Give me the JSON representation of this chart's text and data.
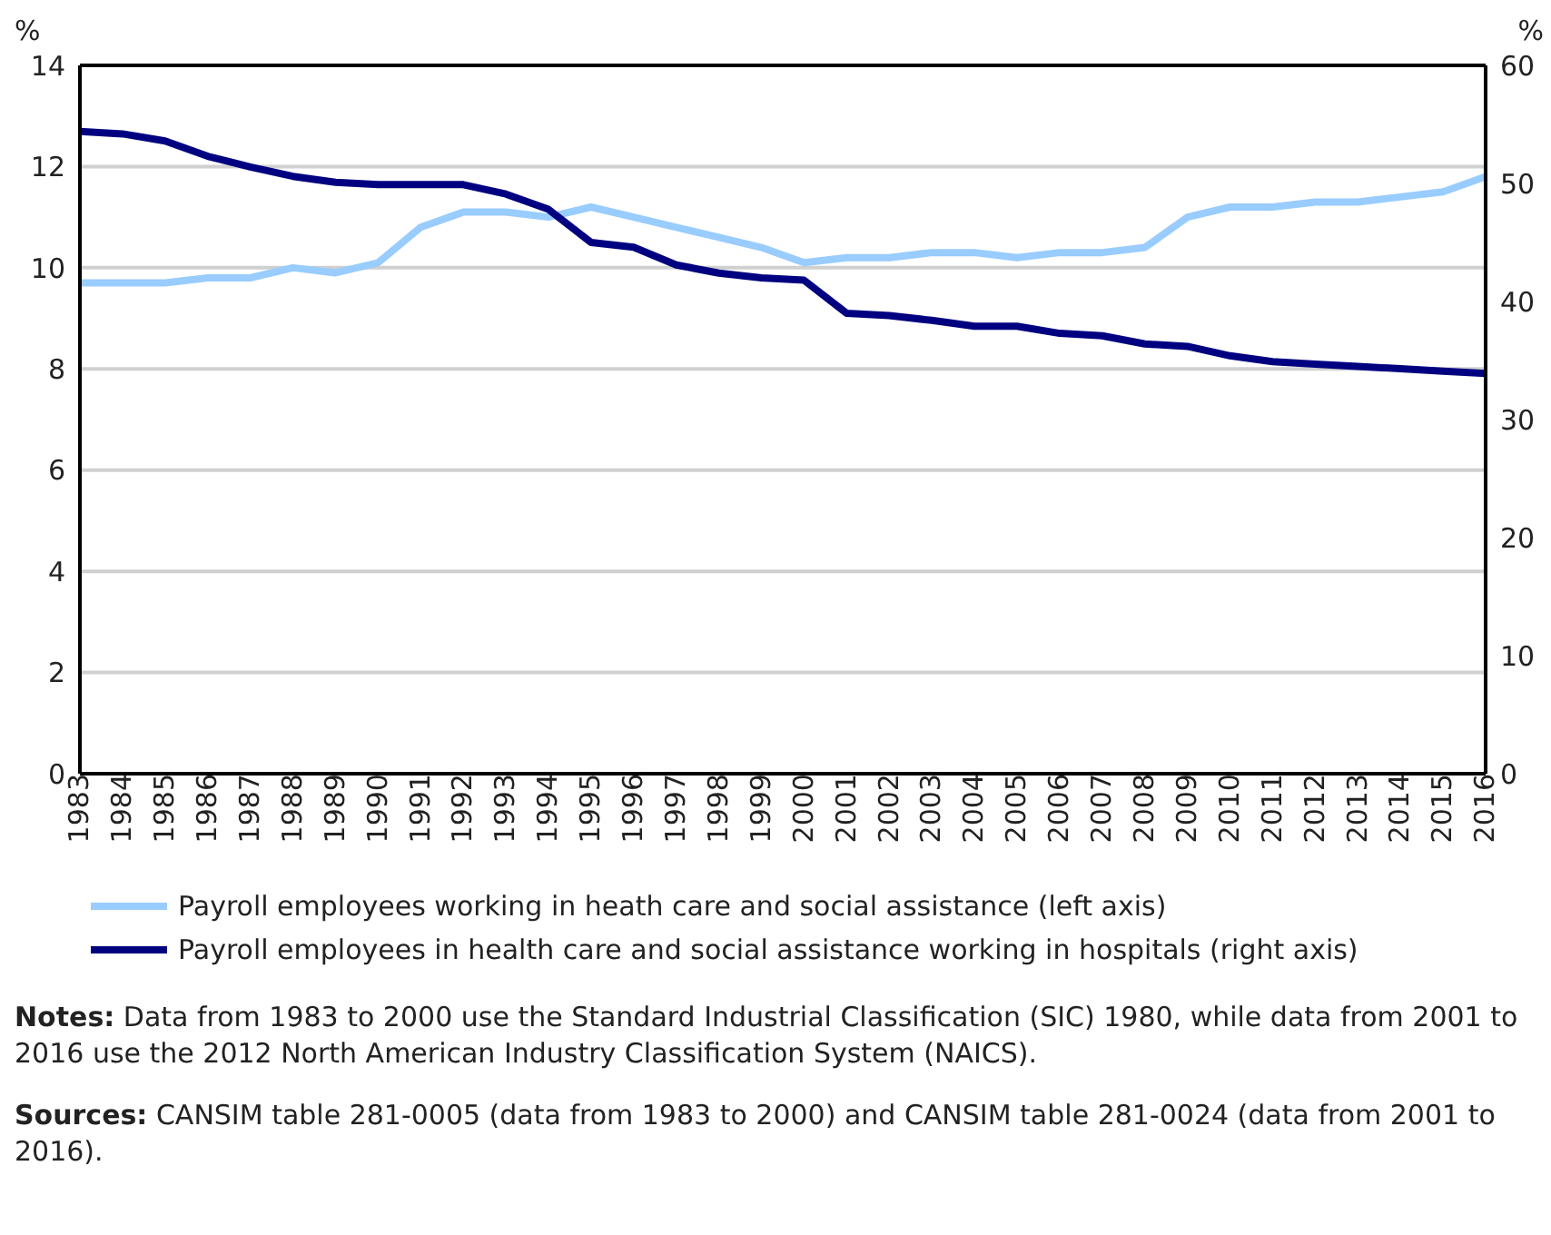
{
  "chart_data": {
    "type": "line",
    "ylabel": "%",
    "y2label": "%",
    "categories": [
      "1983",
      "1984",
      "1985",
      "1986",
      "1987",
      "1988",
      "1989",
      "1990",
      "1991",
      "1992",
      "1993",
      "1994",
      "1995",
      "1996",
      "1997",
      "1998",
      "1999",
      "2000",
      "2001",
      "2002",
      "2003",
      "2004",
      "2005",
      "2006",
      "2007",
      "2008",
      "2009",
      "2010",
      "2011",
      "2012",
      "2013",
      "2014",
      "2015",
      "2016"
    ],
    "series": [
      {
        "name": "Payroll employees working in heath care and social assistance (left axis)",
        "color": "#99ccff",
        "values": [
          9.7,
          9.7,
          9.7,
          9.8,
          9.8,
          10.0,
          9.9,
          10.1,
          10.8,
          11.1,
          11.1,
          11.0,
          11.2,
          11.0,
          10.8,
          10.6,
          10.4,
          10.1,
          10.2,
          10.2,
          10.3,
          10.3,
          10.2,
          10.3,
          10.3,
          10.4,
          11.0,
          11.2,
          11.2,
          11.3,
          11.3,
          11.4,
          11.5,
          11.8
        ]
      },
      {
        "name": "Payroll employees in health care and social assistance working in hospitals (right axis)",
        "color": "#000080",
        "axis": "y2",
        "values": [
          54.4,
          54.2,
          53.6,
          52.3,
          51.4,
          50.6,
          50.1,
          49.9,
          49.9,
          49.9,
          49.1,
          47.8,
          45.0,
          44.6,
          43.1,
          42.4,
          42.0,
          41.8,
          39.0,
          38.8,
          38.4,
          37.9,
          37.9,
          37.3,
          37.1,
          36.4,
          36.2,
          35.4,
          34.9,
          34.7,
          34.5,
          34.3,
          34.1,
          33.9
        ]
      }
    ],
    "ylim": [
      0,
      14
    ],
    "yticks": [
      0,
      2,
      4,
      6,
      8,
      10,
      12,
      14
    ],
    "y2lim": [
      0,
      60
    ],
    "y2ticks": [
      0,
      10,
      20,
      30,
      40,
      50,
      60
    ],
    "grid": "y",
    "legend": "bottom",
    "marker": "none",
    "line_style": "solid",
    "annotations": [
      "Notes: Data from 1983 to 2000 use the Standard Industrial Classification (SIC) 1980, while data from 2001 to 2016 use the 2012 North American Industry Classification System (NAICS).",
      "Sources: CANSIM table 281-0005 (data from 1983 to 2000) and CANSIM table 281-0024 (data from 2001 to 2016)."
    ]
  }
}
